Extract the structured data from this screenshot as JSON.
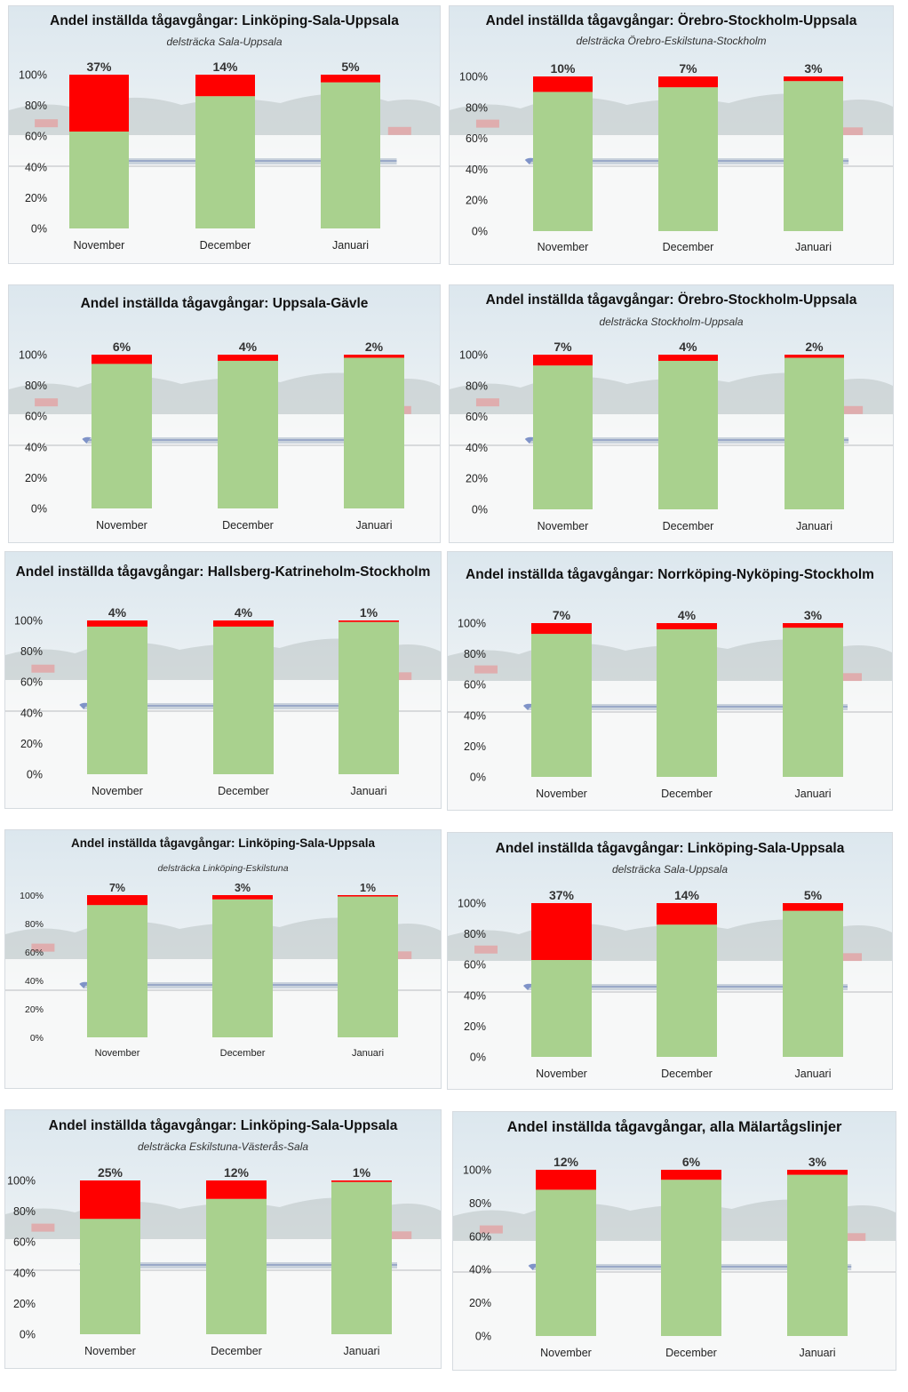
{
  "colors": {
    "kept": "#a9d18e",
    "cancelled": "#ff0000"
  },
  "charts": [
    {
      "title": "Andel inställda tågavgångar: Linköping-Sala-Uppsala",
      "subtitle": "delsträcka Sala-Uppsala"
    },
    {
      "title": "Andel inställda tågavgångar: Örebro-Stockholm-Uppsala",
      "subtitle": "delsträcka Örebro-Eskilstuna-Stockholm"
    },
    {
      "title": "Andel inställda tågavgångar: Uppsala-Gävle",
      "subtitle": ""
    },
    {
      "title": "Andel inställda tågavgångar: Örebro-Stockholm-Uppsala",
      "subtitle": "delsträcka Stockholm-Uppsala"
    },
    {
      "title": "Andel inställda tågavgångar: Hallsberg-Katrineholm-Stockholm",
      "subtitle": ""
    },
    {
      "title": "Andel inställda tågavgångar: Norrköping-Nyköping-Stockholm",
      "subtitle": ""
    },
    {
      "title": "Andel inställda tågavgångar: Linköping-Sala-Uppsala",
      "subtitle": "delsträcka Linköping-Eskilstuna"
    },
    {
      "title": "Andel inställda tågavgångar: Linköping-Sala-Uppsala",
      "subtitle": "delsträcka Sala-Uppsala"
    },
    {
      "title": "Andel inställda tågavgångar: Linköping-Sala-Uppsala",
      "subtitle": "delsträcka Eskilstuna-Västerås-Sala"
    },
    {
      "title": "Andel inställda tågavgångar, alla Mälartågslinjer",
      "subtitle": ""
    }
  ],
  "chart_data": [
    {
      "type": "bar",
      "stacked": true,
      "categories": [
        "November",
        "December",
        "Januari"
      ],
      "yticks": [
        "0%",
        "20%",
        "40%",
        "60%",
        "80%",
        "100%"
      ],
      "ylim": [
        0,
        100
      ],
      "grid": false,
      "series": [
        {
          "values": [
            63,
            86,
            95
          ],
          "color": "#a9d18e"
        },
        {
          "values": [
            37,
            14,
            5
          ],
          "color": "#ff0000"
        }
      ],
      "data_labels": [
        "37%",
        "14%",
        "5%"
      ]
    },
    {
      "type": "bar",
      "stacked": true,
      "categories": [
        "November",
        "December",
        "Januari"
      ],
      "yticks": [
        "0%",
        "20%",
        "40%",
        "60%",
        "80%",
        "100%"
      ],
      "ylim": [
        0,
        100
      ],
      "grid": false,
      "series": [
        {
          "values": [
            90,
            93,
            97
          ],
          "color": "#a9d18e"
        },
        {
          "values": [
            10,
            7,
            3
          ],
          "color": "#ff0000"
        }
      ],
      "data_labels": [
        "10%",
        "7%",
        "3%"
      ]
    },
    {
      "type": "bar",
      "stacked": true,
      "categories": [
        "November",
        "December",
        "Januari"
      ],
      "yticks": [
        "0%",
        "20%",
        "40%",
        "60%",
        "80%",
        "100%"
      ],
      "ylim": [
        0,
        100
      ],
      "grid": false,
      "series": [
        {
          "values": [
            94,
            96,
            98
          ],
          "color": "#a9d18e"
        },
        {
          "values": [
            6,
            4,
            2
          ],
          "color": "#ff0000"
        }
      ],
      "data_labels": [
        "6%",
        "4%",
        "2%"
      ]
    },
    {
      "type": "bar",
      "stacked": true,
      "categories": [
        "November",
        "December",
        "Januari"
      ],
      "yticks": [
        "0%",
        "20%",
        "40%",
        "60%",
        "80%",
        "100%"
      ],
      "ylim": [
        0,
        100
      ],
      "grid": false,
      "series": [
        {
          "values": [
            93,
            96,
            98
          ],
          "color": "#a9d18e"
        },
        {
          "values": [
            7,
            4,
            2
          ],
          "color": "#ff0000"
        }
      ],
      "data_labels": [
        "7%",
        "4%",
        "2%"
      ]
    },
    {
      "type": "bar",
      "stacked": true,
      "categories": [
        "November",
        "December",
        "Januari"
      ],
      "yticks": [
        "0%",
        "20%",
        "40%",
        "60%",
        "80%",
        "100%"
      ],
      "ylim": [
        0,
        100
      ],
      "grid": false,
      "series": [
        {
          "values": [
            96,
            96,
            99
          ],
          "color": "#a9d18e"
        },
        {
          "values": [
            4,
            4,
            1
          ],
          "color": "#ff0000"
        }
      ],
      "data_labels": [
        "4%",
        "4%",
        "1%"
      ]
    },
    {
      "type": "bar",
      "stacked": true,
      "categories": [
        "November",
        "December",
        "Januari"
      ],
      "yticks": [
        "0%",
        "20%",
        "40%",
        "60%",
        "80%",
        "100%"
      ],
      "ylim": [
        0,
        100
      ],
      "grid": false,
      "series": [
        {
          "values": [
            93,
            96,
            97
          ],
          "color": "#a9d18e"
        },
        {
          "values": [
            7,
            4,
            3
          ],
          "color": "#ff0000"
        }
      ],
      "data_labels": [
        "7%",
        "4%",
        "3%"
      ]
    },
    {
      "type": "bar",
      "stacked": true,
      "categories": [
        "November",
        "December",
        "Januari"
      ],
      "yticks": [
        "0%",
        "20%",
        "40%",
        "60%",
        "80%",
        "100%"
      ],
      "ylim": [
        0,
        100
      ],
      "grid": false,
      "series": [
        {
          "values": [
            93,
            97,
            99
          ],
          "color": "#a9d18e"
        },
        {
          "values": [
            7,
            3,
            1
          ],
          "color": "#ff0000"
        }
      ],
      "data_labels": [
        "7%",
        "3%",
        "1%"
      ]
    },
    {
      "type": "bar",
      "stacked": true,
      "categories": [
        "November",
        "December",
        "Januari"
      ],
      "yticks": [
        "0%",
        "20%",
        "40%",
        "60%",
        "80%",
        "100%"
      ],
      "ylim": [
        0,
        100
      ],
      "grid": false,
      "series": [
        {
          "values": [
            63,
            86,
            95
          ],
          "color": "#a9d18e"
        },
        {
          "values": [
            37,
            14,
            5
          ],
          "color": "#ff0000"
        }
      ],
      "data_labels": [
        "37%",
        "14%",
        "5%"
      ]
    },
    {
      "type": "bar",
      "stacked": true,
      "categories": [
        "November",
        "December",
        "Januari"
      ],
      "yticks": [
        "0%",
        "20%",
        "40%",
        "60%",
        "80%",
        "100%"
      ],
      "ylim": [
        0,
        100
      ],
      "grid": false,
      "series": [
        {
          "values": [
            75,
            88,
            99
          ],
          "color": "#a9d18e"
        },
        {
          "values": [
            25,
            12,
            1
          ],
          "color": "#ff0000"
        }
      ],
      "data_labels": [
        "25%",
        "12%",
        "1%"
      ]
    },
    {
      "type": "bar",
      "stacked": true,
      "categories": [
        "November",
        "December",
        "Januari"
      ],
      "yticks": [
        "0%",
        "20%",
        "40%",
        "60%",
        "80%",
        "100%"
      ],
      "ylim": [
        0,
        100
      ],
      "grid": false,
      "series": [
        {
          "values": [
            88,
            94,
            97
          ],
          "color": "#a9d18e"
        },
        {
          "values": [
            12,
            6,
            3
          ],
          "color": "#ff0000"
        }
      ],
      "data_labels": [
        "12%",
        "6%",
        "3%"
      ]
    }
  ]
}
